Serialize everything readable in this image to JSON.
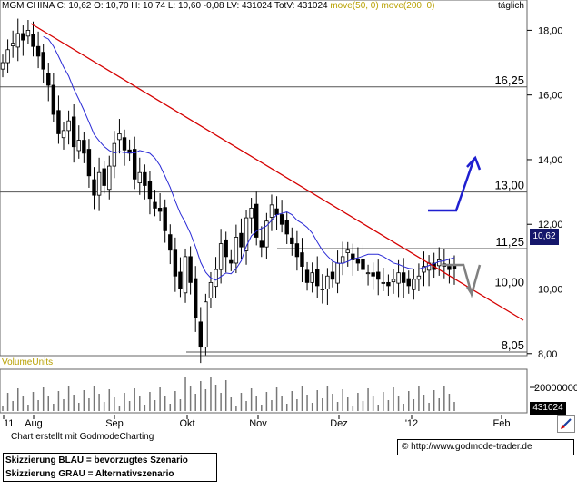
{
  "header": {
    "symbol": "MGM CHINA",
    "ohlc": "C: 10,62 O: 10,70 H: 10,74 L: 10,60 -0,08 LV: 431024 TotV: 431024",
    "ma_label": "move(50, 0) move(200, 0)",
    "period": "täglich"
  },
  "price_axis": {
    "ticks": [
      "18,00",
      "16,00",
      "14,00",
      "12,00",
      "10,00",
      "8,00"
    ],
    "last_price": "10,62"
  },
  "levels": [
    "16,25",
    "13,00",
    "11,25",
    "10,00",
    "8,05"
  ],
  "volume": {
    "label": "VolumeUnits",
    "tick": "20000000",
    "last": "431024"
  },
  "x_axis": {
    "labels": [
      "11",
      "Aug",
      "Sep",
      "Okt",
      "Nov",
      "Dez",
      "'12",
      "Feb"
    ]
  },
  "footer": {
    "credit": "Chart erstellt mit GodmodeCharting",
    "legend_blue": "Skizzierung BLAU = bevorzugtes Szenario",
    "legend_grey": "Skizzierung GRAU = Alternativszenario",
    "copyright": "© http://www.godmode-trader.de"
  },
  "chart_data": {
    "type": "candlestick",
    "title": "MGM CHINA",
    "ylim": [
      7.7,
      18.2
    ],
    "horizontal_levels": [
      16.25,
      13.0,
      11.25,
      10.0,
      8.05
    ],
    "last_close": 10.62,
    "close_series": [
      17.0,
      17.4,
      17.6,
      17.9,
      17.7,
      18.0,
      17.5,
      17.2,
      16.8,
      16.3,
      15.4,
      14.8,
      14.9,
      15.2,
      14.4,
      14.6,
      14.2,
      13.5,
      12.9,
      13.6,
      13.2,
      13.8,
      14.5,
      14.8,
      14.3,
      14.2,
      13.4,
      13.6,
      13.2,
      12.8,
      12.5,
      12.4,
      11.8,
      11.2,
      10.4,
      10.0,
      11.0,
      10.2,
      9.1,
      8.2,
      9.6,
      10.2,
      10.6,
      11.4,
      11.0,
      10.8,
      11.6,
      11.3,
      12.2,
      12.5,
      11.6,
      11.3,
      12.1,
      12.6,
      12.3,
      12.0,
      11.7,
      11.4,
      11.0,
      10.7,
      10.2,
      10.5,
      10.1,
      10.0,
      10.4,
      10.3,
      10.8,
      11.0,
      11.2,
      10.9,
      10.8,
      10.6,
      10.5,
      10.4,
      10.3,
      10.2,
      10.1,
      10.3,
      10.5,
      10.2,
      10.1,
      10.3,
      10.4,
      10.7,
      10.8,
      10.6,
      10.9,
      10.7,
      10.6,
      10.62
    ],
    "series": [
      {
        "name": "move(50, 0)",
        "color": "#2b2bd6"
      },
      {
        "name": "move(200, 0)",
        "color": "#d50000"
      }
    ]
  },
  "colors": {
    "ma50": "#2b2bd6",
    "trendline": "#d50000",
    "scenario_blue": "#1f1fd0",
    "scenario_grey": "#808080"
  }
}
